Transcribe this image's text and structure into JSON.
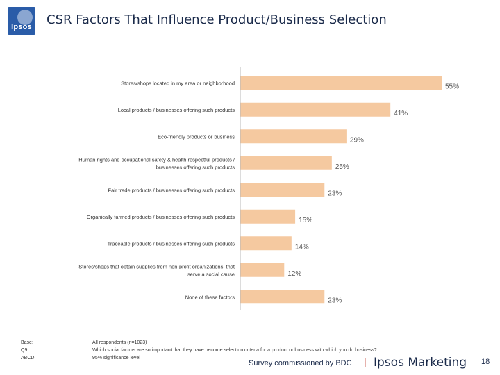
{
  "logo": {
    "text": "Ipsos"
  },
  "title": "CSR Factors That Influence Product/Business Selection",
  "chart_data": {
    "type": "bar",
    "orientation": "horizontal",
    "bar_color": "#f5c9a0",
    "axis_color": "#b8b8b8",
    "label_color": "#333333",
    "value_color": "#555555",
    "value_suffix": "%",
    "xlim": [
      0,
      55
    ],
    "categories": [
      [
        "Stores/shops located in my area or neighborhood"
      ],
      [
        "Local products / businesses offering such products"
      ],
      [
        "Eco-friendly products or business"
      ],
      [
        "Human rights and occupational safety & health respectful products /",
        "businesses offering such products"
      ],
      [
        "Fair trade products / businesses offering such products"
      ],
      [
        "Organically farmed products / businesses offering such products"
      ],
      [
        "Traceable products / businesses offering such products"
      ],
      [
        "Stores/shops that obtain supplies from non-profit organizations, that",
        "serve a social cause"
      ],
      [
        "None of these factors"
      ]
    ],
    "values": [
      55,
      41,
      29,
      25,
      23,
      15,
      14,
      12,
      23
    ]
  },
  "footer": {
    "labels": [
      "Base:",
      "Q9:",
      "ABCD:"
    ],
    "texts": [
      "All respondents (n=1023)",
      "Which social factors are so important that they have become selection criteria for a product or business with which you do business?",
      "95% significance level"
    ],
    "commission": "Survey commissioned by BDC",
    "separator": "|",
    "brand": "Ipsos Marketing",
    "page_number": "18"
  }
}
